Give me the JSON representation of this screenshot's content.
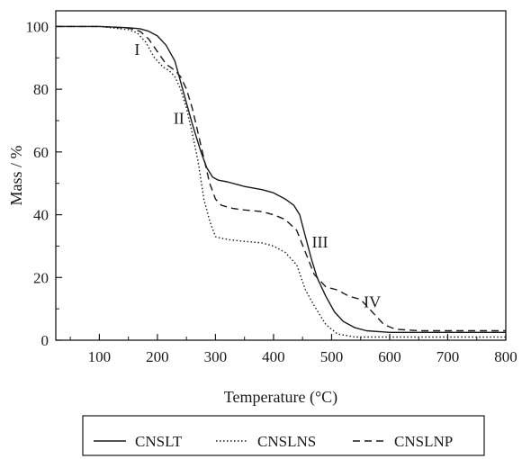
{
  "chart_data": {
    "type": "line",
    "xlabel": "Temperature (°C)",
    "ylabel": "Mass / %",
    "xlim": [
      25,
      800
    ],
    "ylim": [
      0,
      105
    ],
    "xticks": [
      100,
      200,
      300,
      400,
      500,
      600,
      700,
      800
    ],
    "yticks": [
      0,
      20,
      40,
      60,
      80,
      100
    ],
    "grid": false,
    "legend_position": "bottom",
    "series": [
      {
        "name": "CNSLT",
        "dash": "solid",
        "x": [
          25,
          100,
          150,
          170,
          185,
          200,
          215,
          230,
          245,
          260,
          275,
          285,
          295,
          305,
          320,
          350,
          380,
          400,
          420,
          435,
          445,
          455,
          465,
          475,
          490,
          505,
          520,
          540,
          560,
          600,
          650,
          700,
          800
        ],
        "y": [
          100,
          100,
          99.6,
          99.3,
          98.5,
          97,
          94,
          89,
          79,
          69,
          60,
          55,
          52,
          51,
          50.5,
          49,
          48,
          47,
          45,
          43,
          40,
          33,
          26,
          20,
          14,
          9,
          6,
          4,
          3,
          2.5,
          2.5,
          2.5,
          2.5
        ]
      },
      {
        "name": "CNSLNS",
        "dash": "dotted",
        "x": [
          25,
          100,
          150,
          165,
          180,
          195,
          210,
          220,
          230,
          240,
          250,
          260,
          270,
          280,
          290,
          300,
          310,
          325,
          350,
          380,
          400,
          420,
          440,
          455,
          470,
          490,
          510,
          540,
          600,
          700,
          800
        ],
        "y": [
          100,
          100,
          99,
          98,
          95,
          90,
          87,
          86,
          84,
          80,
          74,
          66,
          57,
          45,
          38,
          33,
          32.5,
          32,
          31.5,
          31,
          30,
          28,
          24,
          16,
          11,
          5,
          2,
          1,
          1,
          1,
          1
        ]
      },
      {
        "name": "CNSLNP",
        "dash": "dashed",
        "x": [
          25,
          100,
          150,
          170,
          185,
          200,
          215,
          230,
          240,
          250,
          260,
          270,
          280,
          290,
          300,
          310,
          330,
          350,
          380,
          400,
          420,
          440,
          455,
          470,
          490,
          510,
          530,
          550,
          570,
          590,
          610,
          650,
          700,
          800
        ],
        "y": [
          100,
          100,
          99.5,
          98.5,
          96,
          92,
          88,
          86,
          84,
          80,
          74,
          66,
          58,
          50,
          45,
          43,
          42,
          41.5,
          41,
          40,
          38.5,
          35,
          28,
          21,
          17,
          16,
          14,
          13,
          9,
          5,
          3.5,
          3,
          3,
          3
        ]
      }
    ],
    "annotations": [
      {
        "text": "I",
        "x": 165,
        "y": 91
      },
      {
        "text": "II",
        "x": 237,
        "y": 69
      },
      {
        "text": "III",
        "x": 480,
        "y": 29.5
      },
      {
        "text": "IV",
        "x": 570,
        "y": 10.5
      }
    ]
  }
}
